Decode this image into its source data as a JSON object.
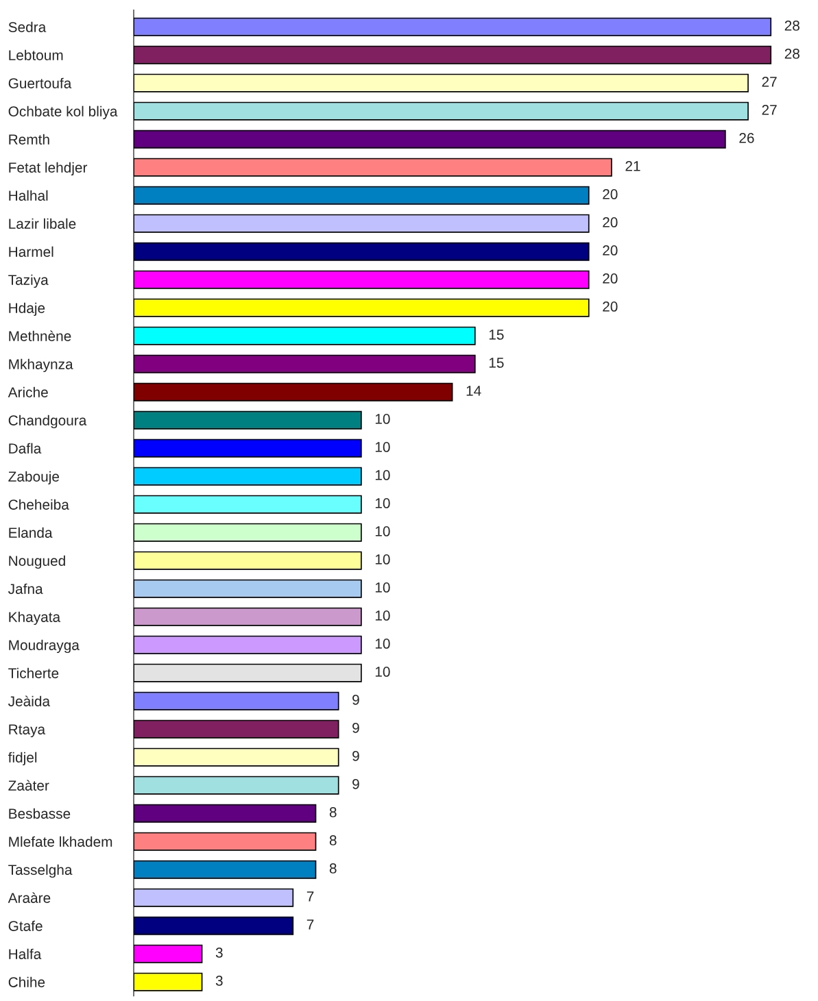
{
  "chart_data": {
    "type": "bar",
    "orientation": "horizontal",
    "data_labels": true,
    "grid": false,
    "legend": false,
    "categories": [
      "Sedra",
      "Lebtoum",
      "Guertoufa",
      "Ochbate kol bliya",
      "Remth",
      "Fetat lehdjer",
      "Halhal",
      "Lazir libale",
      "Harmel",
      "Taziya",
      "Hdaje",
      "Methnène",
      "Mkhaynza",
      "Ariche",
      "Chandgoura",
      "Dafla",
      "Zabouje",
      "Cheheiba",
      "Elanda",
      "Nougued",
      "Jafna",
      "Khayata",
      "Moudrayga",
      "Ticherte",
      "Jeàida",
      "Rtaya",
      "fidjel",
      "Zaàter",
      "Besbasse",
      "Mlefate lkhadem",
      "Tasselgha",
      "Araàre",
      "Gtafe",
      "Halfa",
      "Chihe"
    ],
    "values": [
      28,
      28,
      27,
      27,
      26,
      21,
      20,
      20,
      20,
      20,
      20,
      15,
      15,
      14,
      10,
      10,
      10,
      10,
      10,
      10,
      10,
      10,
      10,
      10,
      9,
      9,
      9,
      9,
      8,
      8,
      8,
      7,
      7,
      3,
      3
    ],
    "colors": [
      "#8080ff",
      "#802060",
      "#ffffc0",
      "#a0e0e0",
      "#600080",
      "#ff8080",
      "#0080c0",
      "#c0c0ff",
      "#000080",
      "#ff00ff",
      "#ffff00",
      "#00ffff",
      "#800080",
      "#800000",
      "#008080",
      "#0000ff",
      "#00ccff",
      "#69ffff",
      "#ccffcc",
      "#ffff99",
      "#a6caf0",
      "#cc99cc",
      "#cc99ff",
      "#e3e3e3",
      "#8080ff",
      "#802060",
      "#ffffc0",
      "#a0e0e0",
      "#600080",
      "#ff8080",
      "#0080c0",
      "#c0c0ff",
      "#000080",
      "#ff00ff",
      "#ffff00"
    ]
  }
}
